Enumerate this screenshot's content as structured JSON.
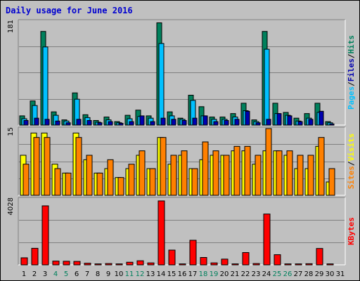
{
  "title": "Daily usage for June 2016",
  "colors": {
    "title": "#0000d0",
    "hits": "#00805c",
    "files": "#00c0ff",
    "pages": "#0000b0",
    "visits": "#ffff00",
    "sites": "#ff8000",
    "kbytes": "#ff0000",
    "weekend_day": "#00805c",
    "weekday": "#000000",
    "panel_bg": "#c0c0c0",
    "gridline": "#808080"
  },
  "chart_data": [
    {
      "type": "bar",
      "panel": "hits-files-pages",
      "y_max_label": "181",
      "ylim": [
        0,
        181
      ],
      "side_labels": [
        "Pages",
        "/",
        "Files",
        "/",
        "Hits"
      ],
      "categories": [
        "1",
        "2",
        "3",
        "4",
        "5",
        "6",
        "7",
        "8",
        "9",
        "10",
        "11",
        "12",
        "13",
        "14",
        "15",
        "16",
        "17",
        "18",
        "19",
        "20",
        "21",
        "22",
        "23",
        "24",
        "25",
        "26",
        "27",
        "28",
        "29",
        "30",
        "31"
      ],
      "series": [
        {
          "name": "Hits",
          "values": [
            16,
            42,
            163,
            23,
            9,
            56,
            18,
            8,
            14,
            6,
            17,
            26,
            16,
            178,
            23,
            12,
            52,
            32,
            14,
            14,
            20,
            38,
            9,
            163,
            38,
            22,
            12,
            20,
            38,
            6,
            0
          ]
        },
        {
          "name": "Files",
          "values": [
            11,
            34,
            136,
            17,
            7,
            45,
            13,
            5,
            9,
            4,
            11,
            15,
            12,
            142,
            16,
            10,
            43,
            16,
            10,
            10,
            14,
            25,
            6,
            132,
            20,
            17,
            7,
            12,
            22,
            4,
            0
          ]
        },
        {
          "name": "Pages",
          "values": [
            8,
            12,
            10,
            7,
            4,
            10,
            8,
            4,
            6,
            3,
            6,
            16,
            6,
            12,
            10,
            8,
            12,
            16,
            6,
            8,
            10,
            24,
            4,
            10,
            20,
            16,
            6,
            10,
            24,
            2,
            0
          ]
        }
      ]
    },
    {
      "type": "bar",
      "panel": "visits-sites",
      "y_max_label": "15",
      "ylim": [
        0,
        15
      ],
      "side_labels": [
        "Sites",
        "/",
        "Visits"
      ],
      "categories": [
        "1",
        "2",
        "3",
        "4",
        "5",
        "6",
        "7",
        "8",
        "9",
        "10",
        "11",
        "12",
        "13",
        "14",
        "15",
        "16",
        "17",
        "18",
        "19",
        "20",
        "21",
        "22",
        "23",
        "24",
        "25",
        "26",
        "27",
        "28",
        "29",
        "30",
        "31"
      ],
      "series": [
        {
          "name": "Visits",
          "values": [
            9,
            14,
            14,
            7,
            5,
            14,
            8,
            5,
            6,
            4,
            6,
            9,
            6,
            13,
            7,
            9,
            6,
            8,
            9,
            9,
            10,
            10,
            7,
            10,
            10,
            9,
            6,
            6,
            11,
            3,
            0
          ]
        },
        {
          "name": "Sites",
          "values": [
            7,
            13,
            13,
            6,
            5,
            13,
            9,
            5,
            8,
            4,
            7,
            10,
            6,
            13,
            9,
            10,
            6,
            12,
            10,
            9,
            11,
            11,
            9,
            15,
            10,
            10,
            9,
            9,
            13,
            6,
            0
          ]
        }
      ]
    },
    {
      "type": "bar",
      "panel": "kbytes",
      "y_max_label": "4028",
      "ylim": [
        0,
        4028
      ],
      "side_labels": [
        "KBytes"
      ],
      "categories": [
        "1",
        "2",
        "3",
        "4",
        "5",
        "6",
        "7",
        "8",
        "9",
        "10",
        "11",
        "12",
        "13",
        "14",
        "15",
        "16",
        "17",
        "18",
        "19",
        "20",
        "21",
        "22",
        "23",
        "24",
        "25",
        "26",
        "27",
        "28",
        "29",
        "30",
        "31"
      ],
      "series": [
        {
          "name": "KBytes",
          "values": [
            430,
            1010,
            3600,
            230,
            220,
            210,
            100,
            60,
            80,
            60,
            160,
            250,
            120,
            3900,
            900,
            60,
            1500,
            450,
            120,
            350,
            60,
            750,
            80,
            3100,
            620,
            60,
            60,
            70,
            1000,
            60,
            0
          ]
        }
      ]
    }
  ],
  "x_days": [
    "1",
    "2",
    "3",
    "4",
    "5",
    "6",
    "7",
    "8",
    "9",
    "10",
    "11",
    "12",
    "13",
    "14",
    "15",
    "16",
    "17",
    "18",
    "19",
    "20",
    "21",
    "22",
    "23",
    "24",
    "25",
    "26",
    "27",
    "28",
    "29",
    "30",
    "31"
  ],
  "weekend_days": [
    4,
    5,
    11,
    12,
    18,
    19,
    25,
    26
  ]
}
